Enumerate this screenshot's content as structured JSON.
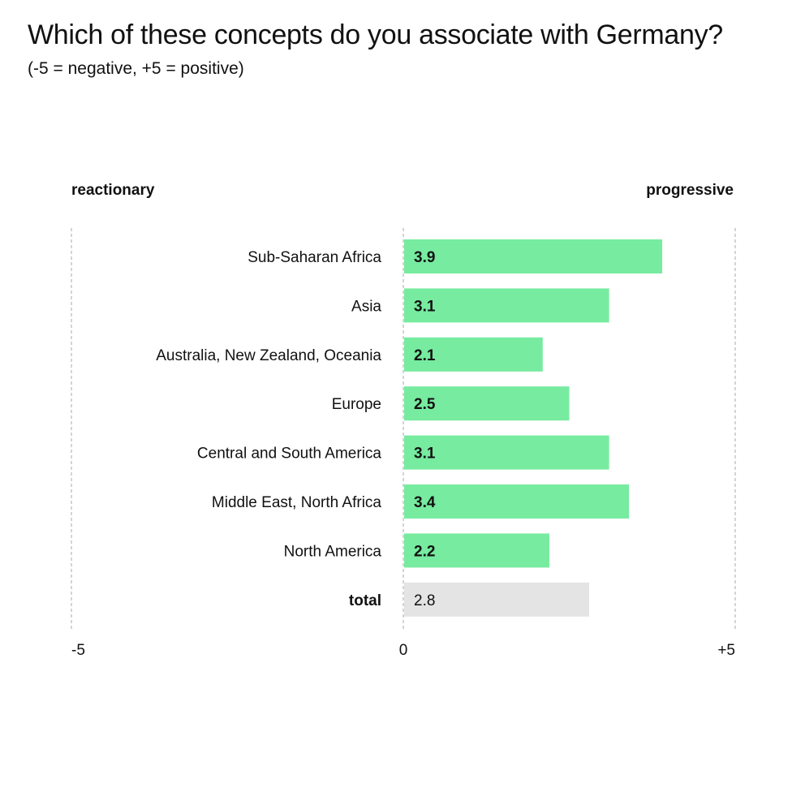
{
  "header": {
    "title": "Which of these concepts do you associate with Germany?",
    "subtitle": "(-5 = negative, +5 = positive)"
  },
  "poles": {
    "left": "reactionary",
    "right": "progressive"
  },
  "colors": {
    "bar": "#77eba0",
    "total_bar": "#e4e4e4",
    "gridline": "#aaaaaa"
  },
  "chart_data": {
    "type": "bar",
    "orientation": "horizontal",
    "categories": [
      "Sub-Saharan Africa",
      "Asia",
      "Australia, New Zealand, Oceania",
      "Europe",
      "Central and South America",
      "Middle East, North Africa",
      "North America",
      "total"
    ],
    "values": [
      3.9,
      3.1,
      2.1,
      2.5,
      3.1,
      3.4,
      2.2,
      2.8
    ],
    "value_labels": [
      "3.9",
      "3.1",
      "2.1",
      "2.5",
      "3.1",
      "3.4",
      "2.2",
      "2.8"
    ],
    "highlight_category": "total",
    "xlim": [
      -5,
      5
    ],
    "ticks": [
      {
        "value": -5,
        "label": "-5"
      },
      {
        "value": 0,
        "label": "0"
      },
      {
        "value": 5,
        "label": "+5"
      }
    ],
    "grid": "dashed lines at -5, 0 and +5",
    "title": "Which of these concepts do you associate with Germany?",
    "subtitle": "(-5 = negative, +5 = positive)"
  }
}
